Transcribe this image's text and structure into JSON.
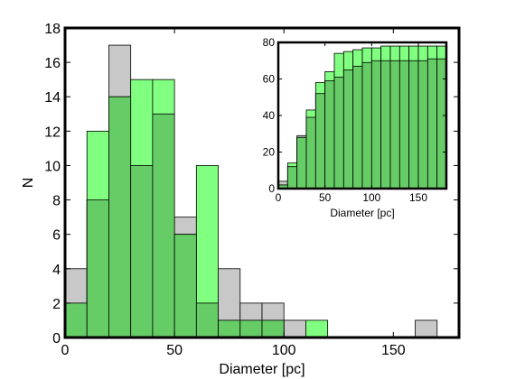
{
  "chart_data": [
    {
      "type": "bar",
      "subtype": "histogram-overlay",
      "xlabel": "Diameter [pc]",
      "ylabel": "N",
      "xlim": [
        0,
        180
      ],
      "ylim": [
        0,
        18
      ],
      "xticks": [
        0,
        50,
        100,
        150
      ],
      "yticks": [
        0,
        2,
        4,
        6,
        8,
        10,
        12,
        14,
        16,
        18
      ],
      "bin_edges": [
        0,
        10,
        20,
        30,
        40,
        50,
        60,
        70,
        80,
        90,
        100,
        110,
        120,
        130,
        140,
        150,
        160,
        170,
        180
      ],
      "series": [
        {
          "color": "#c8c8c8",
          "values": [
            4,
            8,
            17,
            10,
            13,
            7,
            2,
            4,
            2,
            2,
            1,
            0,
            0,
            0,
            0,
            0,
            1,
            0
          ]
        },
        {
          "color": "#80ff80",
          "values": [
            2,
            12,
            14,
            15,
            15,
            6,
            10,
            1,
            1,
            1,
            0,
            1,
            0,
            0,
            0,
            0,
            0,
            0
          ]
        }
      ],
      "overlap_color": "#66cc66"
    },
    {
      "type": "bar",
      "subtype": "cumulative-histogram-inset",
      "xlabel": "Diameter [pc]",
      "ylabel": "",
      "xlim": [
        0,
        180
      ],
      "ylim": [
        0,
        80
      ],
      "xticks": [
        0,
        50,
        100,
        150
      ],
      "yticks": [
        0,
        20,
        40,
        60,
        80
      ],
      "bin_edges": [
        0,
        10,
        20,
        30,
        40,
        50,
        60,
        70,
        80,
        90,
        100,
        110,
        120,
        130,
        140,
        150,
        160,
        170,
        180
      ],
      "series": [
        {
          "color": "#c8c8c8",
          "values": [
            4,
            12,
            29,
            39,
            52,
            59,
            61,
            65,
            67,
            69,
            70,
            70,
            70,
            70,
            70,
            70,
            71,
            71
          ]
        },
        {
          "color": "#80ff80",
          "values": [
            2,
            14,
            28,
            43,
            58,
            64,
            74,
            75,
            76,
            77,
            77,
            78,
            78,
            78,
            78,
            78,
            78,
            78
          ]
        }
      ],
      "overlap_color": "#66cc66"
    }
  ]
}
